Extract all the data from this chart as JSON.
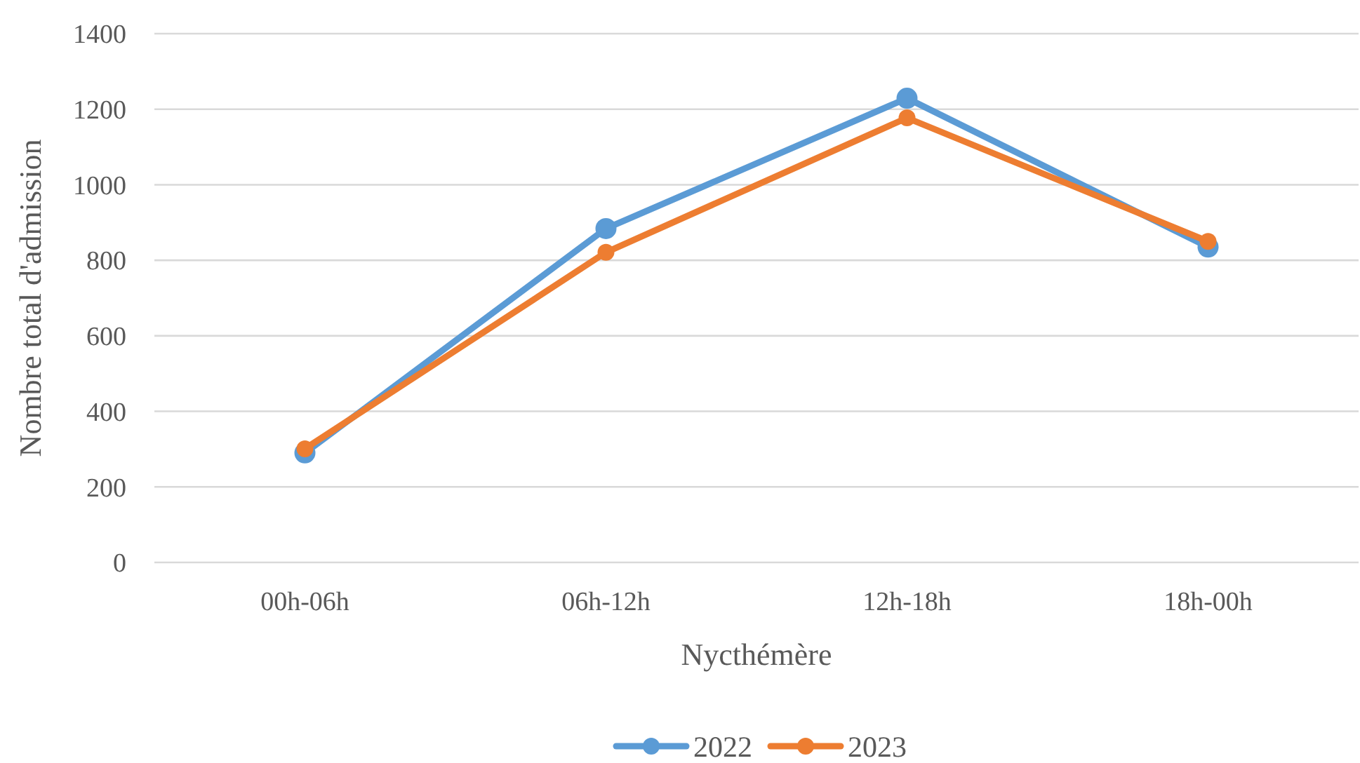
{
  "chart_data": {
    "type": "line",
    "xlabel": "Nycthémère",
    "ylabel": "Nombre total d'admission",
    "categories": [
      "00h-06h",
      "06h-12h",
      "12h-18h",
      "18h-00h"
    ],
    "series": [
      {
        "name": "2022",
        "color": "#5b9bd5",
        "values": [
          290,
          884,
          1229,
          835
        ]
      },
      {
        "name": "2023",
        "color": "#ed7d31",
        "values": [
          301,
          821,
          1177,
          850
        ]
      }
    ],
    "ylim": [
      0,
      1400
    ],
    "yticks": [
      0,
      200,
      400,
      600,
      800,
      1000,
      1200,
      1400
    ],
    "grid": "y",
    "legend": "bottom",
    "marker": "circle",
    "line_style": "solid"
  }
}
